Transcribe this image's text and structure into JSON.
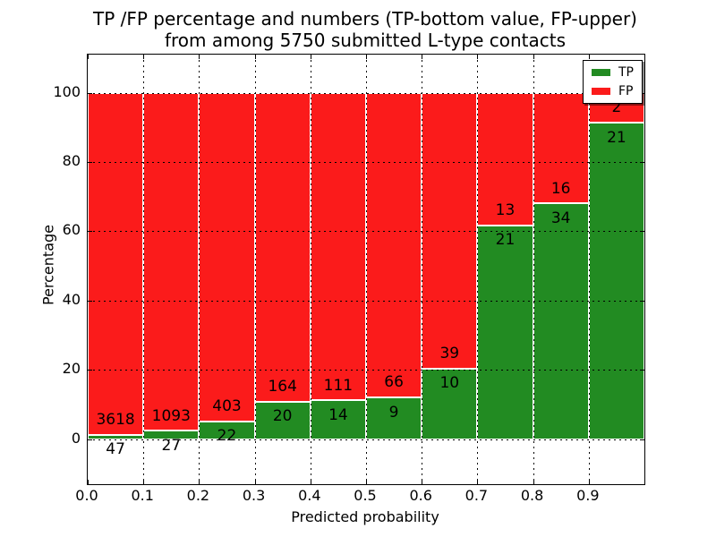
{
  "title": {
    "line1": "TP /FP percentage and numbers (TP-bottom value, FP-upper)",
    "line2": "from among 5750 submitted L-type contacts"
  },
  "chart_data": {
    "type": "bar",
    "stacked": true,
    "normalized": "each bar totals 100%",
    "title": "TP /FP percentage and numbers (TP-bottom value, FP-upper) from among 5750 submitted L-type contacts",
    "xlabel": "Predicted probability",
    "ylabel": "Percentage",
    "total_submitted": 5750,
    "bin_width": 0.1,
    "x_tick_labels": [
      "0.0",
      "0.1",
      "0.2",
      "0.3",
      "0.4",
      "0.5",
      "0.6",
      "0.7",
      "0.8",
      "0.9"
    ],
    "y_ticks": [
      0,
      20,
      40,
      60,
      80,
      100
    ],
    "y_tick_labels": [
      "0",
      "20",
      "40",
      "60",
      "80",
      "100"
    ],
    "xlim": [
      0.0,
      1.0
    ],
    "ylim": [
      -13,
      111
    ],
    "grid": {
      "style": "dotted",
      "color": "#000000",
      "on_top": true
    },
    "series": [
      {
        "name": "TP",
        "color": "#228b22",
        "counts": [
          47,
          27,
          22,
          20,
          14,
          9,
          10,
          21,
          34,
          21
        ]
      },
      {
        "name": "FP",
        "color": "#fb1b1b",
        "counts": [
          3618,
          1093,
          403,
          164,
          111,
          66,
          39,
          13,
          16,
          2
        ]
      }
    ],
    "tp_percent": [
      1.28,
      2.41,
      5.18,
      10.87,
      11.2,
      12.0,
      20.41,
      61.76,
      68.0,
      91.3
    ],
    "fp_percent": [
      98.72,
      97.59,
      94.82,
      89.13,
      88.8,
      88.0,
      79.59,
      38.24,
      32.0,
      8.7
    ],
    "legend": {
      "position": "upper right",
      "entries": [
        {
          "label": "TP",
          "color": "#228b22"
        },
        {
          "label": "FP",
          "color": "#fb1b1b"
        }
      ]
    }
  }
}
